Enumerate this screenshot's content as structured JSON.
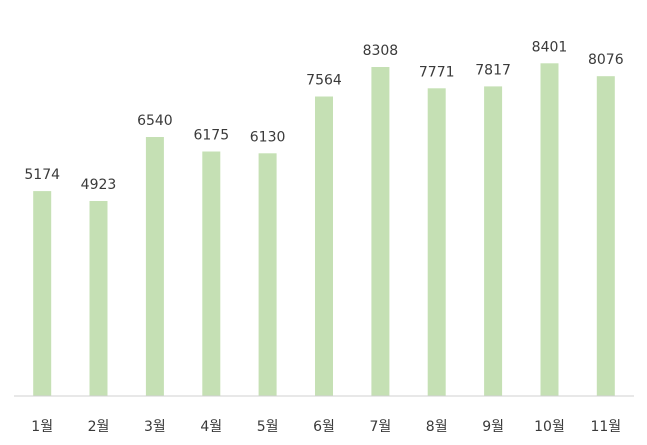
{
  "chart_data": {
    "type": "bar",
    "title": "",
    "xlabel": "",
    "ylabel": "",
    "categories": [
      "1월",
      "2월",
      "3월",
      "4월",
      "5월",
      "6월",
      "7월",
      "8월",
      "9월",
      "10월",
      "11월"
    ],
    "values": [
      5174,
      4923,
      6540,
      6175,
      6130,
      7564,
      8308,
      7771,
      7817,
      8401,
      8076
    ],
    "ylim": [
      0,
      10000
    ],
    "grid": false,
    "legend": "none",
    "show_data_labels": true,
    "show_y_axis": false,
    "bar_color": "#c5e0b4",
    "axis_color": "#d0d0d0",
    "text_color": "#3a3a3a"
  }
}
